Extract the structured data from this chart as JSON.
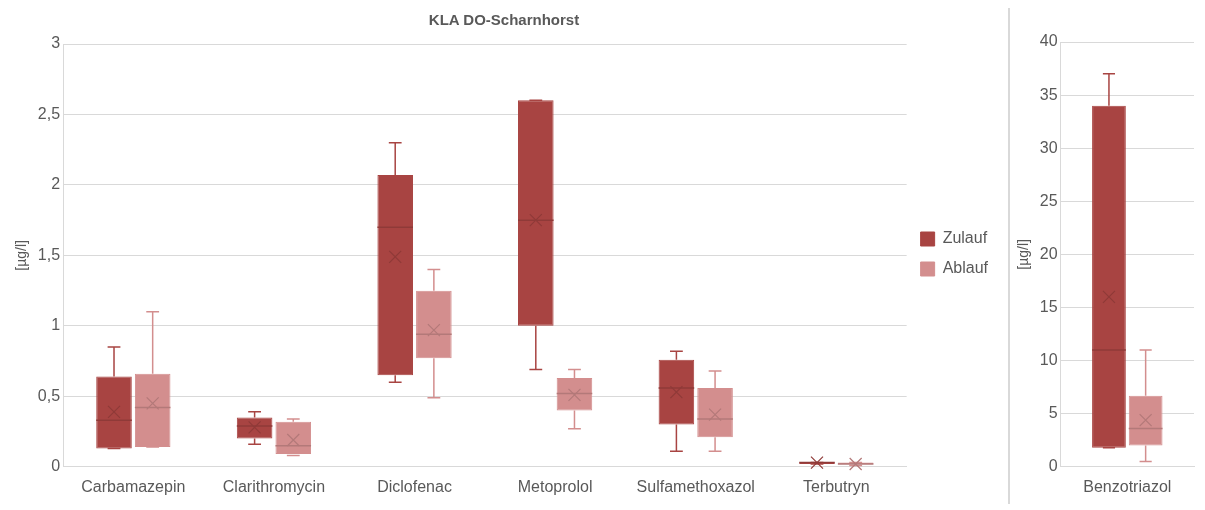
{
  "chart_data": [
    {
      "type": "box",
      "title": "KLA DO-Scharnhorst",
      "ylabel": "[µg/l]",
      "categories": [
        "Carbamazepin",
        "Clarithromycin",
        "Diclofenac",
        "Metoprolol",
        "Sulfamethoxazol",
        "Terbutryn"
      ],
      "ylim": [
        0,
        3
      ],
      "yticks": [
        0,
        {
          "value": 0.5,
          "label": "0,5"
        },
        1,
        {
          "value": 1.5,
          "label": "1,5"
        },
        2,
        {
          "value": 2.5,
          "label": "2,5"
        },
        3
      ],
      "grid": "y",
      "legend": "right",
      "series": [
        {
          "name": "Zulauf",
          "color": "#a84442",
          "boxes": [
            {
              "low": 0.13,
              "q1": 0.13,
              "median": 0.33,
              "q3": 0.64,
              "high": 0.85,
              "mean": 0.39
            },
            {
              "low": 0.16,
              "q1": 0.2,
              "median": 0.29,
              "q3": 0.35,
              "high": 0.39,
              "mean": 0.28
            },
            {
              "low": 0.6,
              "q1": 0.65,
              "median": 1.7,
              "q3": 2.07,
              "high": 2.3,
              "mean": 1.49
            },
            {
              "low": 0.69,
              "q1": 1.0,
              "median": 1.75,
              "q3": 2.6,
              "high": 2.6,
              "mean": 1.75
            },
            {
              "low": 0.11,
              "q1": 0.3,
              "median": 0.56,
              "q3": 0.76,
              "high": 0.82,
              "mean": 0.53
            },
            {
              "low": 0.02,
              "q1": 0.02,
              "median": 0.03,
              "q3": 0.03,
              "high": 0.03,
              "mean": 0.03
            }
          ]
        },
        {
          "name": "Ablauf",
          "color": "#d38e8e",
          "boxes": [
            {
              "low": 0.14,
              "q1": 0.14,
              "median": 0.42,
              "q3": 0.66,
              "high": 1.1,
              "mean": 0.45
            },
            {
              "low": 0.08,
              "q1": 0.09,
              "median": 0.15,
              "q3": 0.32,
              "high": 0.34,
              "mean": 0.19
            },
            {
              "low": 0.49,
              "q1": 0.77,
              "median": 0.94,
              "q3": 1.25,
              "high": 1.4,
              "mean": 0.97
            },
            {
              "low": 0.27,
              "q1": 0.4,
              "median": 0.52,
              "q3": 0.63,
              "high": 0.69,
              "mean": 0.51
            },
            {
              "low": 0.11,
              "q1": 0.21,
              "median": 0.34,
              "q3": 0.56,
              "high": 0.68,
              "mean": 0.37
            },
            {
              "low": 0.01,
              "q1": 0.02,
              "median": 0.02,
              "q3": 0.03,
              "high": 0.03,
              "mean": 0.02
            }
          ]
        }
      ]
    },
    {
      "type": "box",
      "ylabel": "[µg/l]",
      "categories": [
        "Benzotriazol"
      ],
      "ylim": [
        0,
        40
      ],
      "yticks": [
        0,
        5,
        10,
        15,
        20,
        25,
        30,
        35,
        40
      ],
      "grid": "y",
      "series": [
        {
          "color": "#a84442",
          "boxes": [
            {
              "low": 1.8,
              "q1": 1.8,
              "median": 11,
              "q3": 34,
              "high": 37,
              "mean": 16
            }
          ]
        },
        {
          "color": "#d38e8e",
          "boxes": [
            {
              "low": 0.5,
              "q1": 2,
              "median": 3.6,
              "q3": 6.7,
              "high": 11,
              "mean": 4.4
            }
          ]
        }
      ]
    }
  ]
}
